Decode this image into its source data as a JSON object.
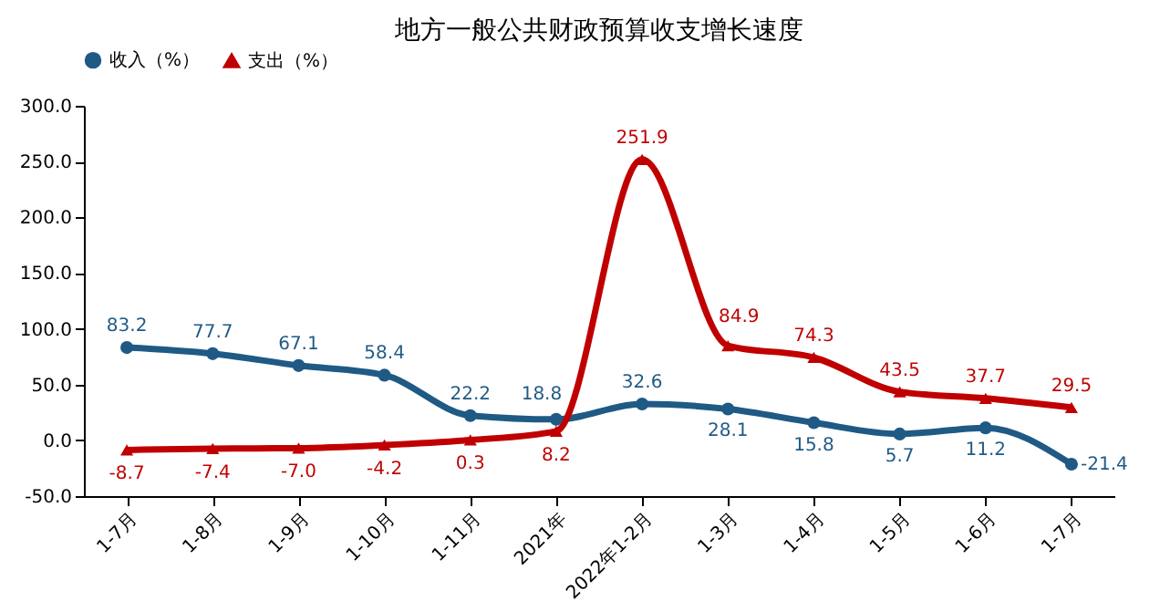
{
  "chart_data": {
    "type": "line",
    "title": "地方一般公共财政预算收支增长速度",
    "categories": [
      "1-7月",
      "1-8月",
      "1-9月",
      "1-10月",
      "1-11月",
      "2021年",
      "2022年1-2月",
      "1-3月",
      "1-4月",
      "1-5月",
      "1-6月",
      "1-7月"
    ],
    "series": [
      {
        "name": "收入（%）",
        "color": "#1f5a85",
        "marker": "circle",
        "values": [
          83.2,
          77.7,
          67.1,
          58.4,
          22.2,
          18.8,
          32.6,
          28.1,
          15.8,
          5.7,
          11.2,
          -21.4
        ],
        "value_labels": [
          "83.2",
          "77.7",
          "67.1",
          "58.4",
          "22.2",
          "18.8",
          "32.6",
          "28.1",
          "15.8",
          "5.7",
          "11.2",
          "-21.4"
        ]
      },
      {
        "name": "支出（%）",
        "color": "#c00000",
        "marker": "triangle",
        "values": [
          -8.7,
          -7.4,
          -7.0,
          -4.2,
          0.3,
          8.2,
          251.9,
          84.9,
          74.3,
          43.5,
          37.7,
          29.5
        ],
        "value_labels": [
          "-8.7",
          "-7.4",
          "-7.0",
          "-4.2",
          "0.3",
          "8.2",
          "251.9",
          "84.9",
          "74.3",
          "43.5",
          "37.7",
          "29.5"
        ]
      }
    ],
    "ylim": [
      -50,
      300
    ],
    "yticks": [
      {
        "value": -50,
        "label": "-50.0"
      },
      {
        "value": 0,
        "label": "0.0"
      },
      {
        "value": 50,
        "label": "50.0"
      },
      {
        "value": 100,
        "label": "100.0"
      },
      {
        "value": 150,
        "label": "150.0"
      },
      {
        "value": 200,
        "label": "200.0"
      },
      {
        "value": 250,
        "label": "250.0"
      },
      {
        "value": 300,
        "label": "300.0"
      }
    ],
    "data_labels": true,
    "legend": "top",
    "grid": false,
    "line_style": "solid"
  }
}
